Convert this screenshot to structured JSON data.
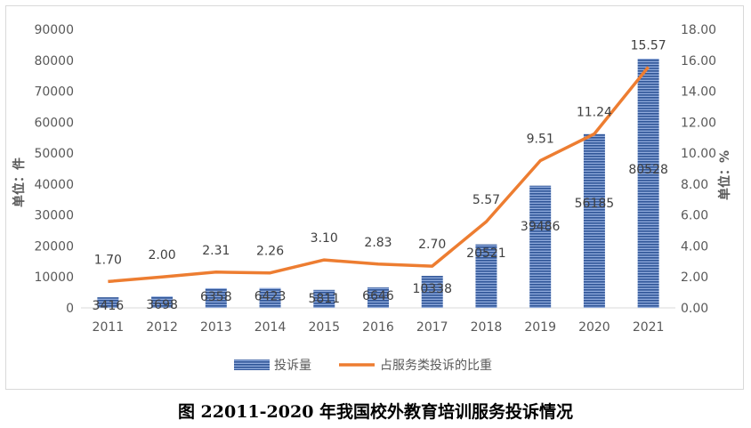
{
  "caption": "图 22011-2020 年我国校外教育培训服务投诉情况",
  "chart_data": {
    "type": "bar+line",
    "categories": [
      "2011",
      "2012",
      "2013",
      "2014",
      "2015",
      "2016",
      "2017",
      "2018",
      "2019",
      "2020",
      "2021"
    ],
    "series": [
      {
        "name": "投诉量",
        "type": "bar",
        "axis": "left",
        "color": "#4472c4",
        "values": [
          3416,
          3698,
          6358,
          6423,
          5811,
          6646,
          10338,
          20521,
          39486,
          56185,
          80528
        ],
        "labels": [
          "3416",
          "3698",
          "6358",
          "6423",
          "5811",
          "6646",
          "10338",
          "20521",
          "39486",
          "56185",
          "80528"
        ]
      },
      {
        "name": "占服务类投诉的比重",
        "type": "line",
        "axis": "right",
        "color": "#ed7d31",
        "values": [
          1.7,
          2.0,
          2.31,
          2.26,
          3.1,
          2.83,
          2.7,
          5.57,
          9.51,
          11.24,
          15.57
        ],
        "labels": [
          "1.70",
          "2.00",
          "2.31",
          "2.26",
          "3.10",
          "2.83",
          "2.70",
          "5.57",
          "9.51",
          "11.24",
          "15.57"
        ]
      }
    ],
    "ylabel_left": "单位：件",
    "ylabel_right": "单位：%",
    "ylim_left": [
      0,
      90000
    ],
    "ylim_right": [
      0,
      18
    ],
    "yticks_left": [
      "0",
      "10000",
      "20000",
      "30000",
      "40000",
      "50000",
      "60000",
      "70000",
      "80000",
      "90000"
    ],
    "yticks_right": [
      "0.00",
      "2.00",
      "4.00",
      "6.00",
      "8.00",
      "10.00",
      "12.00",
      "14.00",
      "16.00",
      "18.00"
    ],
    "grid": false,
    "legend": "bottom"
  }
}
